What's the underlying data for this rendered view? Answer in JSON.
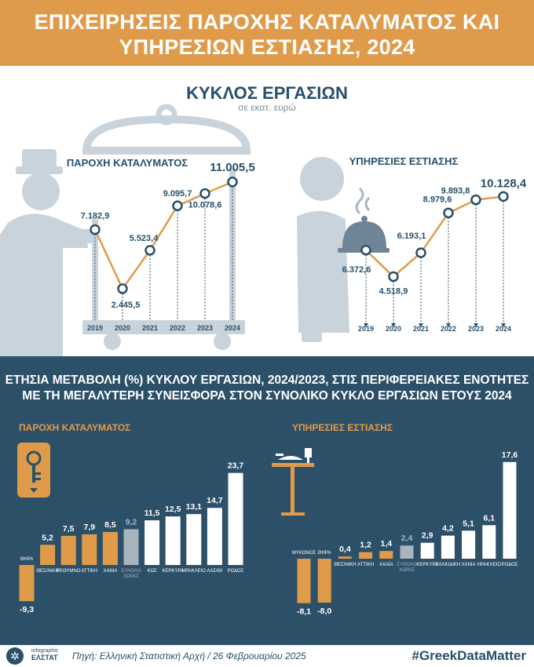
{
  "header": {
    "title_line1": "ΕΠΙΧΕΙΡΗΣΕΙΣ ΠΑΡΟΧΗΣ ΚΑΤΑΛΥΜΑΤΟΣ ΚΑΙ",
    "title_line2": "ΥΠΗΡΕΣΙΩΝ ΕΣΤΙΑΣΗΣ, 2024"
  },
  "top_section": {
    "title": "ΚΥΚΛΟΣ ΕΡΓΑΣΙΩΝ",
    "subtitle": "σε εκατ. ευρώ"
  },
  "bottom_section": {
    "title_line1": "ΕΤΗΣΙΑ ΜΕΤΑΒΟΛΗ (%) ΚΥΚΛΟΥ ΕΡΓΑΣΙΩΝ, 2024/2023, ΣΤΙΣ ΠΕΡΙΦΕΡΕΙΑΚΕΣ ΕΝΟΤΗΤΕΣ",
    "title_line2": "ΜΕ ΤΗ ΜΕΓΑΛΥΤΕΡΗ ΣΥΝΕΙΣΦΟΡΑ ΣΤΟΝ ΣΥΝΟΛΙΚΟ ΚΥΚΛΟ ΕΡΓΑΣΙΩΝ ΕΤΟΥΣ 2024"
  },
  "footer": {
    "logo_text1": "infographic",
    "logo_text2": "ΕΛΣΤΑΤ",
    "source": "Πηγή: Ελληνική Στατιστική Αρχή  / 26 Φεβρουαρίου 2025",
    "hashtag": "#GreekDataMatter"
  },
  "colors": {
    "orange": "#e09b4a",
    "navy": "#27506a",
    "dark_panel": "#2d5069",
    "gray_silhouette": "#c9d3db",
    "total_bar": "#a8b4be",
    "white": "#ffffff"
  },
  "icons": [
    "bellhop-icon",
    "cloche-icon",
    "waiter-icon",
    "key-icon",
    "restaurant-table-icon",
    "elstat-logo-icon"
  ],
  "chart_data": [
    {
      "type": "line",
      "title": "ΠΑΡΟΧΗ ΚΑΤΑΛΥΜΑΤΟΣ",
      "x": [
        "2019",
        "2020",
        "2021",
        "2022",
        "2023",
        "2024"
      ],
      "values": [
        7182.9,
        2445.5,
        5523.4,
        9095.7,
        10078.6,
        11005.5
      ],
      "labels": [
        "7.182,9",
        "2.445,5",
        "5.523,4",
        "9.095,7",
        "10.078,6",
        "11.005,5"
      ],
      "ylim": [
        2000,
        11500
      ]
    },
    {
      "type": "line",
      "title": "ΥΠΗΡΕΣΙΕΣ ΕΣΤΙΑΣΗΣ",
      "x": [
        "2019",
        "2020",
        "2021",
        "2022",
        "2023",
        "2024"
      ],
      "values": [
        6372.6,
        4518.9,
        6193.1,
        8979.6,
        9893.8,
        10128.4
      ],
      "labels": [
        "6.372,6",
        "4.518,9",
        "6.193,1",
        "8.979,6",
        "9.893,8",
        "10.128,4"
      ],
      "ylim": [
        4000,
        10700
      ]
    },
    {
      "type": "bar",
      "title": "ΠΑΡΟΧΗ ΚΑΤΑΛΥΜΑΤΟΣ",
      "categories": [
        "ΘΗΡΑ",
        "ΘΕΣ/ΝΙΚΗ",
        "ΡΕΘΥΜΝΟ",
        "ΑΤΤΙΚΗ",
        "ΧΑΝΙΑ",
        "ΣΥΝΟΛΟ ΧΩΡΑΣ",
        "ΚΩΣ",
        "ΚΕΡΚΥΡΑ",
        "ΗΡΑΚΛΕΙΟ",
        "ΛΑΣΙΘΙ",
        "ΡΟΔΟΣ"
      ],
      "values": [
        -9.3,
        5.2,
        7.5,
        7.9,
        8.5,
        9.2,
        11.5,
        12.5,
        13.1,
        14.7,
        23.7
      ],
      "labels": [
        "-9,3",
        "5,2",
        "7,5",
        "7,9",
        "8,5",
        "9,2",
        "11,5",
        "12,5",
        "13,1",
        "14,7",
        "23,7"
      ],
      "colors": [
        "#e09b4a",
        "#e09b4a",
        "#e09b4a",
        "#e09b4a",
        "#e09b4a",
        "#a8b4be",
        "#ffffff",
        "#ffffff",
        "#ffffff",
        "#ffffff",
        "#ffffff"
      ]
    },
    {
      "type": "bar",
      "title": "ΥΠΗΡΕΣΙΕΣ ΕΣΤΙΑΣΗΣ",
      "categories": [
        "ΜΥΚΟΝΟΣ",
        "ΘΗΡΑ",
        "ΘΕΣ/ΝΙΚΗ",
        "ΑΤΤΙΚΗ",
        "ΑΧΑΪΑ",
        "ΣΥΝΟΛΟ ΧΩΡΑΣ",
        "ΚΕΡΚΥΡΑ",
        "ΧΑΛΚΙΔΙΚΗ",
        "ΧΑΝΙΑ",
        "ΗΡΑΚΛΕΙΟ",
        "ΡΟΔΟΣ"
      ],
      "values": [
        -8.1,
        -8.0,
        0.4,
        1.2,
        1.4,
        2.4,
        2.9,
        4.2,
        5.1,
        6.1,
        17.6
      ],
      "labels": [
        "-8,1",
        "-8,0",
        "0,4",
        "1,2",
        "1,4",
        "2,4",
        "2,9",
        "4,2",
        "5,1",
        "6,1",
        "17,6"
      ],
      "colors": [
        "#e09b4a",
        "#e09b4a",
        "#e09b4a",
        "#e09b4a",
        "#e09b4a",
        "#a8b4be",
        "#ffffff",
        "#ffffff",
        "#ffffff",
        "#ffffff",
        "#ffffff"
      ]
    }
  ]
}
